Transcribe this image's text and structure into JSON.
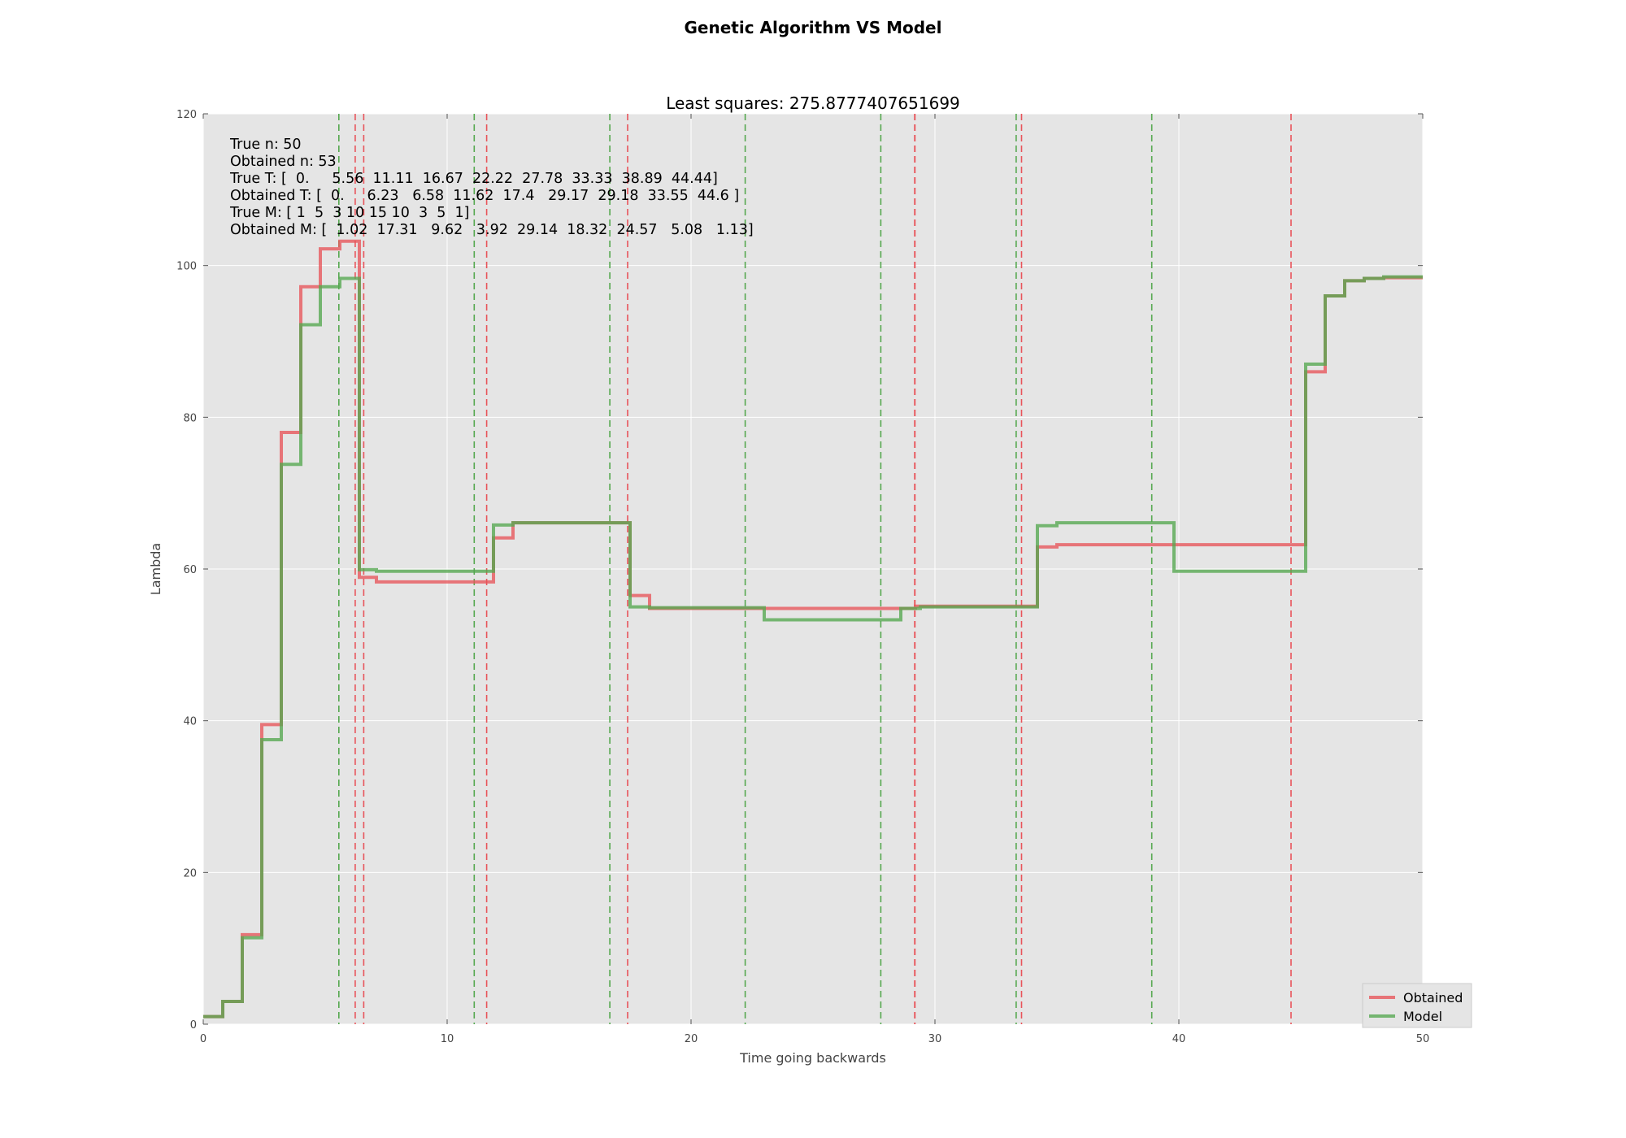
{
  "chart_data": {
    "type": "line",
    "suptitle": "Genetic Algorithm VS Model",
    "title": "Least squares: 275.8777407651699",
    "xlabel": "Time going backwards",
    "ylabel": "Lambda",
    "xlim": [
      0,
      50
    ],
    "ylim": [
      0,
      120
    ],
    "xticks": [
      0,
      10,
      20,
      30,
      40,
      50
    ],
    "yticks": [
      0,
      20,
      40,
      60,
      80,
      100,
      120
    ],
    "grid": true,
    "legend_position": "lower right",
    "annotations": [
      "True n: 50",
      "Obtained n: 53",
      "True T: [  0.     5.56  11.11  16.67  22.22  27.78  33.33  38.89  44.44]",
      "Obtained T: [  0.     6.23   6.58  11.62  17.4   29.17  29.18  33.55  44.6 ]",
      "True M: [ 1  5  3 10 15 10  3  5  1]",
      "Obtained M: [  1.02  17.31   9.62   3.92  29.14  18.32  24.57   5.08   1.13]"
    ],
    "series": [
      {
        "name": "Obtained",
        "color": "#e8545a",
        "x": [
          0,
          0.8,
          1.6,
          2.4,
          3.2,
          4.0,
          4.8,
          5.6,
          6.4,
          7.1,
          11.9,
          12.7,
          17.5,
          18.3,
          29.2,
          34.2,
          35.0,
          45.2,
          46.0,
          46.8,
          47.6,
          48.4,
          50
        ],
        "y": [
          1,
          3,
          11.8,
          39.5,
          78.0,
          97.2,
          102.2,
          103.2,
          58.9,
          58.3,
          64.1,
          66.1,
          56.5,
          54.8,
          55.1,
          62.9,
          63.2,
          86.0,
          96.0,
          98.0,
          98.3,
          98.4,
          98.4
        ]
      },
      {
        "name": "Model",
        "color": "#55a84f",
        "x": [
          0,
          0.8,
          1.6,
          2.4,
          3.2,
          4.0,
          4.8,
          5.6,
          6.4,
          7.1,
          11.9,
          12.7,
          17.5,
          18.3,
          23.0,
          28.6,
          29.4,
          34.2,
          35.0,
          39.8,
          45.2,
          46.0,
          46.8,
          47.6,
          48.4,
          50
        ],
        "y": [
          1,
          3,
          11.4,
          37.5,
          73.8,
          92.2,
          97.2,
          98.3,
          59.9,
          59.7,
          65.8,
          66.1,
          55.0,
          54.9,
          53.3,
          54.8,
          55.0,
          65.7,
          66.1,
          59.7,
          87.0,
          96.0,
          98.0,
          98.3,
          98.5,
          98.5
        ]
      }
    ],
    "vlines_true": {
      "color": "#55a84f",
      "style": "dashed",
      "x": [
        5.56,
        11.11,
        16.67,
        22.22,
        27.78,
        33.33,
        38.89
      ]
    },
    "vlines_obtained": {
      "color": "#e8545a",
      "style": "dashed",
      "x": [
        6.23,
        6.58,
        11.62,
        17.4,
        29.17,
        29.18,
        33.55,
        44.6
      ]
    }
  }
}
